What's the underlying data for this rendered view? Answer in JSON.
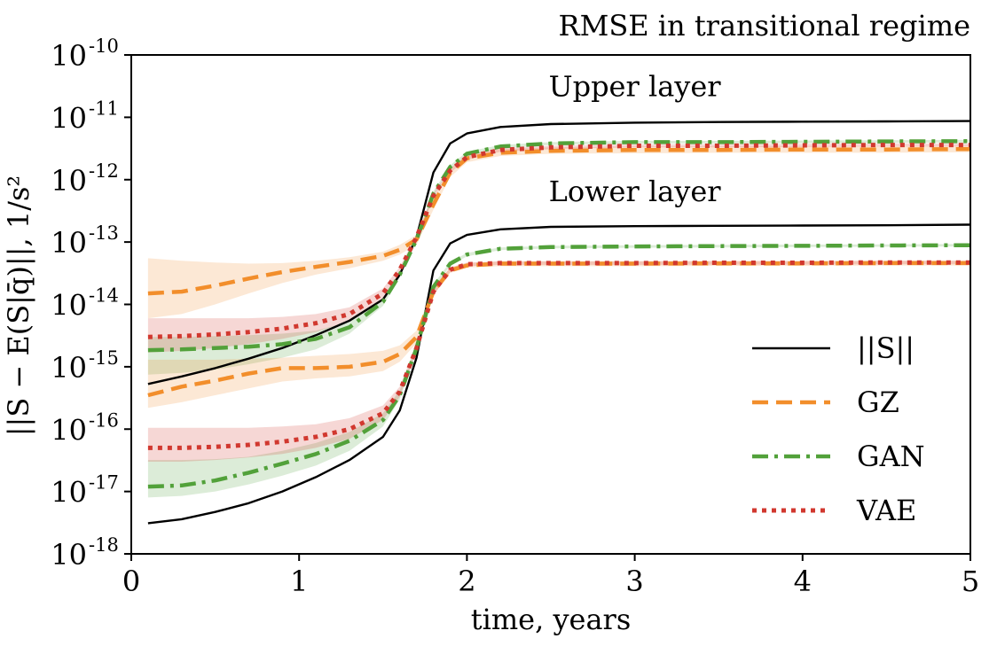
{
  "chart_data": {
    "type": "line",
    "title": "RMSE in transitional regime",
    "xlabel": "time, years",
    "ylabel": "||S − E(S|q̄)||, 1/s²",
    "xlim": [
      0,
      5
    ],
    "ylim": [
      1e-18,
      1e-10
    ],
    "yscale": "log",
    "grid": false,
    "legend_position": "center-right",
    "x_ticks": [
      "0",
      "1",
      "2",
      "3",
      "4",
      "5"
    ],
    "y_ticks": [
      {
        "base": "10",
        "exp": "-10"
      },
      {
        "base": "10",
        "exp": "-11"
      },
      {
        "base": "10",
        "exp": "-12"
      },
      {
        "base": "10",
        "exp": "-13"
      },
      {
        "base": "10",
        "exp": "-14"
      },
      {
        "base": "10",
        "exp": "-15"
      },
      {
        "base": "10",
        "exp": "-16"
      },
      {
        "base": "10",
        "exp": "-17"
      },
      {
        "base": "10",
        "exp": "-18"
      }
    ],
    "annotations": [
      {
        "text": "Upper layer",
        "x": 3.0,
        "y": 2.2e-11
      },
      {
        "text": "Lower layer",
        "x": 3.0,
        "y": 4.5e-13
      }
    ],
    "legend": [
      {
        "label": "||S||",
        "series": "norm"
      },
      {
        "label": "GZ",
        "series": "GZ"
      },
      {
        "label": "GAN",
        "series": "GAN"
      },
      {
        "label": "VAE",
        "series": "VAE"
      }
    ],
    "colors": {
      "norm": "#000000",
      "GZ": "#f28e2b",
      "GAN": "#52a13a",
      "VAE": "#d1382f"
    },
    "series": [
      {
        "name": "||S||",
        "layer": "Upper layer",
        "style": "solid",
        "x": [
          0.1,
          0.3,
          0.5,
          0.7,
          0.9,
          1.1,
          1.3,
          1.5,
          1.6,
          1.7,
          1.8,
          1.9,
          2.0,
          2.2,
          2.5,
          3.0,
          3.5,
          4.0,
          4.5,
          5.0
        ],
        "y": [
          5.3e-16,
          7e-16,
          9.5e-16,
          1.35e-15,
          2e-15,
          3.2e-15,
          5.5e-15,
          1.2e-14,
          3e-14,
          1.2e-13,
          1.3e-12,
          3.8e-12,
          5.5e-12,
          7e-12,
          7.8e-12,
          8.2e-12,
          8.4e-12,
          8.5e-12,
          8.6e-12,
          8.7e-12
        ]
      },
      {
        "name": "GZ",
        "layer": "Upper layer",
        "style": "dashed",
        "x": [
          0.1,
          0.3,
          0.5,
          0.7,
          0.9,
          1.1,
          1.3,
          1.5,
          1.6,
          1.7,
          1.8,
          1.9,
          2.0,
          2.2,
          2.5,
          3.0,
          3.5,
          4.0,
          4.5,
          5.0
        ],
        "y": [
          1.5e-14,
          1.6e-14,
          2e-14,
          2.6e-14,
          3.3e-14,
          4e-14,
          4.8e-14,
          6e-14,
          7.5e-14,
          1.1e-13,
          4e-13,
          1.3e-12,
          2.2e-12,
          2.7e-12,
          2.9e-12,
          3e-12,
          3e-12,
          3.05e-12,
          3.05e-12,
          3.1e-12
        ],
        "band_upper": [
          5.5e-14,
          5e-14,
          4.7e-14,
          4.5e-14,
          4.6e-14,
          5e-14,
          5.7e-14,
          7e-14,
          9e-14,
          1.3e-13,
          5e-13,
          1.5e-12,
          2.5e-12,
          3.1e-12,
          3.3e-12,
          3.4e-12,
          3.4e-12,
          3.45e-12,
          3.45e-12,
          3.5e-12
        ],
        "band_lower": [
          6e-15,
          7e-15,
          1e-14,
          1.5e-14,
          2.2e-14,
          3e-14,
          3.8e-14,
          5e-14,
          6.3e-14,
          9e-14,
          3.3e-13,
          1.1e-12,
          1.9e-12,
          2.4e-12,
          2.6e-12,
          2.65e-12,
          2.7e-12,
          2.7e-12,
          2.7e-12,
          2.75e-12
        ]
      },
      {
        "name": "GAN",
        "layer": "Upper layer",
        "style": "dashdot",
        "x": [
          0.1,
          0.3,
          0.5,
          0.7,
          0.9,
          1.1,
          1.3,
          1.5,
          1.6,
          1.7,
          1.8,
          1.9,
          2.0,
          2.2,
          2.5,
          3.0,
          3.5,
          4.0,
          4.5,
          5.0
        ],
        "y": [
          1.85e-15,
          1.9e-15,
          2e-15,
          2.1e-15,
          2.3e-15,
          2.8e-15,
          4.3e-15,
          1.1e-14,
          3e-14,
          1.1e-13,
          6e-13,
          1.6e-12,
          2.6e-12,
          3.4e-12,
          3.8e-12,
          4e-12,
          4e-12,
          4.05e-12,
          4.1e-12,
          4.15e-12
        ],
        "band_upper": [
          3e-15,
          3e-15,
          3.1e-15,
          3.2e-15,
          3.4e-15,
          3.8e-15,
          5.3e-15,
          1.25e-14,
          3.3e-14,
          1.2e-13,
          6.5e-13,
          1.7e-12,
          2.8e-12,
          3.6e-12,
          4e-12,
          4.2e-12,
          4.2e-12,
          4.25e-12,
          4.3e-12,
          4.35e-12
        ],
        "band_lower": [
          7.5e-16,
          8e-16,
          9e-16,
          1.1e-15,
          1.4e-15,
          1.9e-15,
          3.4e-15,
          9.5e-15,
          2.7e-14,
          1e-13,
          5.5e-13,
          1.5e-12,
          2.4e-12,
          3.2e-12,
          3.6e-12,
          3.8e-12,
          3.8e-12,
          3.85e-12,
          3.9e-12,
          3.95e-12
        ]
      },
      {
        "name": "VAE",
        "layer": "Upper layer",
        "style": "dotted",
        "x": [
          0.1,
          0.3,
          0.5,
          0.7,
          0.9,
          1.1,
          1.3,
          1.5,
          1.6,
          1.7,
          1.8,
          1.9,
          2.0,
          2.2,
          2.5,
          3.0,
          3.5,
          4.0,
          4.5,
          5.0
        ],
        "y": [
          3e-15,
          3.1e-15,
          3.3e-15,
          3.6e-15,
          4.1e-15,
          5e-15,
          7e-15,
          1.5e-14,
          3.6e-14,
          1.2e-13,
          5.5e-13,
          1.4e-12,
          2.3e-12,
          3e-12,
          3.3e-12,
          3.5e-12,
          3.5e-12,
          3.55e-12,
          3.6e-12,
          3.6e-12
        ],
        "band_upper": [
          6e-15,
          6e-15,
          6e-15,
          6e-15,
          6.3e-15,
          7e-15,
          9e-15,
          1.8e-14,
          4e-14,
          1.3e-13,
          6e-13,
          1.5e-12,
          2.5e-12,
          3.2e-12,
          3.5e-12,
          3.7e-12,
          3.7e-12,
          3.75e-12,
          3.8e-12,
          3.8e-12
        ],
        "band_lower": [
          1.7e-15,
          1.8e-15,
          2e-15,
          2.3e-15,
          2.8e-15,
          3.6e-15,
          5.4e-15,
          1.25e-14,
          3.2e-14,
          1.1e-13,
          5e-13,
          1.3e-12,
          2.1e-12,
          2.8e-12,
          3.1e-12,
          3.3e-12,
          3.3e-12,
          3.35e-12,
          3.4e-12,
          3.4e-12
        ]
      },
      {
        "name": "||S||",
        "layer": "Lower layer",
        "style": "solid",
        "x": [
          0.1,
          0.3,
          0.5,
          0.7,
          0.9,
          1.1,
          1.3,
          1.5,
          1.6,
          1.7,
          1.8,
          1.9,
          2.0,
          2.2,
          2.5,
          3.0,
          3.5,
          4.0,
          4.5,
          5.0
        ],
        "y": [
          3.1e-18,
          3.6e-18,
          4.7e-18,
          6.5e-18,
          1e-17,
          1.7e-17,
          3.2e-17,
          7.5e-17,
          2e-16,
          1.4e-15,
          3.5e-14,
          9.5e-14,
          1.3e-13,
          1.6e-13,
          1.75e-13,
          1.8e-13,
          1.82e-13,
          1.84e-13,
          1.86e-13,
          1.9e-13
        ]
      },
      {
        "name": "GZ",
        "layer": "Lower layer",
        "style": "dashed",
        "x": [
          0.1,
          0.3,
          0.5,
          0.7,
          0.9,
          1.1,
          1.3,
          1.5,
          1.6,
          1.7,
          1.8,
          1.9,
          2.0,
          2.2,
          2.5,
          3.0,
          3.5,
          4.0,
          4.5,
          5.0
        ],
        "y": [
          3.5e-16,
          4.8e-16,
          6e-16,
          7.8e-16,
          9.5e-16,
          9.5e-16,
          1e-15,
          1.2e-15,
          1.6e-15,
          3e-15,
          1.6e-14,
          3.5e-14,
          4.2e-14,
          4.5e-14,
          4.5e-14,
          4.5e-14,
          4.55e-14,
          4.55e-14,
          4.6e-14,
          4.6e-14
        ],
        "band_upper": [
          1.3e-15,
          1.3e-15,
          1.3e-15,
          1.35e-15,
          1.4e-15,
          1.5e-15,
          1.6e-15,
          1.8e-15,
          2.2e-15,
          3.8e-15,
          1.9e-14,
          3.9e-14,
          4.6e-14,
          4.9e-14,
          4.9e-14,
          4.9e-14,
          4.95e-14,
          4.95e-14,
          5e-14,
          5e-14
        ],
        "band_lower": [
          2.2e-16,
          2.7e-16,
          3.5e-16,
          4.5e-16,
          5.8e-16,
          6.5e-16,
          7e-16,
          8.5e-16,
          1.2e-15,
          2.4e-15,
          1.4e-14,
          3.2e-14,
          3.9e-14,
          4.1e-14,
          4.1e-14,
          4.1e-14,
          4.15e-14,
          4.15e-14,
          4.2e-14,
          4.2e-14
        ]
      },
      {
        "name": "GAN",
        "layer": "Lower layer",
        "style": "dashdot",
        "x": [
          0.1,
          0.3,
          0.5,
          0.7,
          0.9,
          1.1,
          1.3,
          1.5,
          1.6,
          1.7,
          1.8,
          1.9,
          2.0,
          2.2,
          2.5,
          3.0,
          3.5,
          4.0,
          4.5,
          5.0
        ],
        "y": [
          1.2e-17,
          1.25e-17,
          1.5e-17,
          2e-17,
          2.8e-17,
          4e-17,
          6.5e-17,
          1.4e-16,
          3.5e-16,
          2e-15,
          1.9e-14,
          4.5e-14,
          6.3e-14,
          7.8e-14,
          8.3e-14,
          8.5e-14,
          8.6e-14,
          8.7e-14,
          8.8e-14,
          8.9e-14
        ],
        "band_upper": [
          3.2e-17,
          3.2e-17,
          3.3e-17,
          3.6e-17,
          4.5e-17,
          6e-17,
          9e-17,
          1.8e-16,
          4.2e-16,
          2.2e-15,
          2.1e-14,
          4.8e-14,
          6.7e-14,
          8.2e-14,
          8.7e-14,
          8.9e-14,
          9e-14,
          9.1e-14,
          9.2e-14,
          9.3e-14
        ],
        "band_lower": [
          8e-18,
          8.5e-18,
          1e-17,
          1.3e-17,
          1.8e-17,
          2.6e-17,
          4.5e-17,
          1.1e-16,
          3e-16,
          1.8e-15,
          1.7e-14,
          4.2e-14,
          5.9e-14,
          7.4e-14,
          7.9e-14,
          8.1e-14,
          8.2e-14,
          8.3e-14,
          8.4e-14,
          8.5e-14
        ]
      },
      {
        "name": "VAE",
        "layer": "Lower layer",
        "style": "dotted",
        "x": [
          0.1,
          0.3,
          0.5,
          0.7,
          0.9,
          1.1,
          1.3,
          1.5,
          1.6,
          1.7,
          1.8,
          1.9,
          2.0,
          2.2,
          2.5,
          3.0,
          3.5,
          4.0,
          4.5,
          5.0
        ],
        "y": [
          5e-17,
          5e-17,
          5.2e-17,
          5.6e-17,
          6.3e-17,
          7.5e-17,
          1e-16,
          1.8e-16,
          4e-16,
          2e-15,
          1.6e-14,
          3.6e-14,
          4.4e-14,
          4.6e-14,
          4.6e-14,
          4.6e-14,
          4.65e-14,
          4.65e-14,
          4.7e-14,
          4.7e-14
        ],
        "band_upper": [
          1.05e-16,
          1.05e-16,
          1.05e-16,
          1.05e-16,
          1.1e-16,
          1.2e-16,
          1.5e-16,
          2.4e-16,
          4.8e-16,
          2.3e-15,
          1.8e-14,
          3.9e-14,
          4.7e-14,
          4.9e-14,
          4.9e-14,
          4.9e-14,
          4.95e-14,
          4.95e-14,
          5e-14,
          5e-14
        ],
        "band_lower": [
          3e-17,
          3e-17,
          3.2e-17,
          3.5e-17,
          4e-17,
          5e-17,
          7e-17,
          1.4e-16,
          3.3e-16,
          1.8e-15,
          1.4e-14,
          3.3e-14,
          4.1e-14,
          4.3e-14,
          4.3e-14,
          4.3e-14,
          4.35e-14,
          4.35e-14,
          4.4e-14,
          4.4e-14
        ]
      }
    ]
  }
}
